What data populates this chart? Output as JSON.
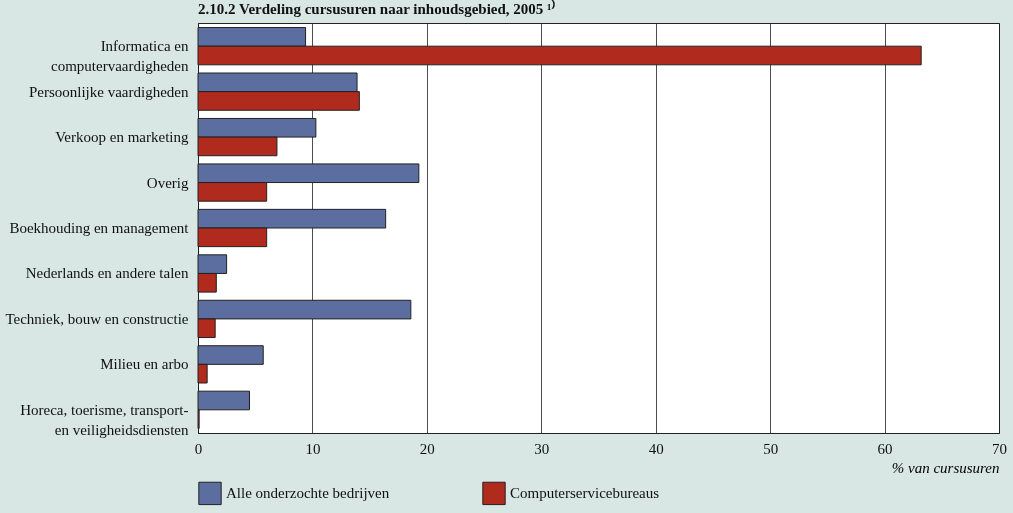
{
  "chart_data": {
    "type": "bar",
    "orientation": "horizontal",
    "title": "2.10.2 Verdeling cursusuren naar inhoudsgebied, 2005 ¹⁾",
    "xlabel": "% van cursusuren",
    "categories": [
      "Informatica en computervaardigheden",
      "Persoonlijke vaardigheden",
      "Verkoop en marketing",
      "Overig",
      "Boekhouding en management",
      "Nederlands en andere talen",
      "Techniek, bouw en constructie",
      "Milieu en arbo",
      "Horeca, toerisme, transport- en veiligheidsdiensten"
    ],
    "series": [
      {
        "name": "Alle onderzochte bedrijven",
        "color": "#5b6e9f",
        "values": [
          9.4,
          13.9,
          10.3,
          19.3,
          16.4,
          2.5,
          18.6,
          5.7,
          4.5
        ]
      },
      {
        "name": "Computerservicebureaus",
        "color": "#b02a1e",
        "values": [
          63.2,
          14.1,
          6.9,
          6.0,
          6.0,
          1.6,
          1.5,
          0.8,
          0.1
        ]
      }
    ],
    "xlim": [
      0,
      70
    ],
    "xticks": [
      0,
      10,
      20,
      30,
      40,
      50,
      60,
      70
    ],
    "grid": "x",
    "legend": "bottom"
  }
}
